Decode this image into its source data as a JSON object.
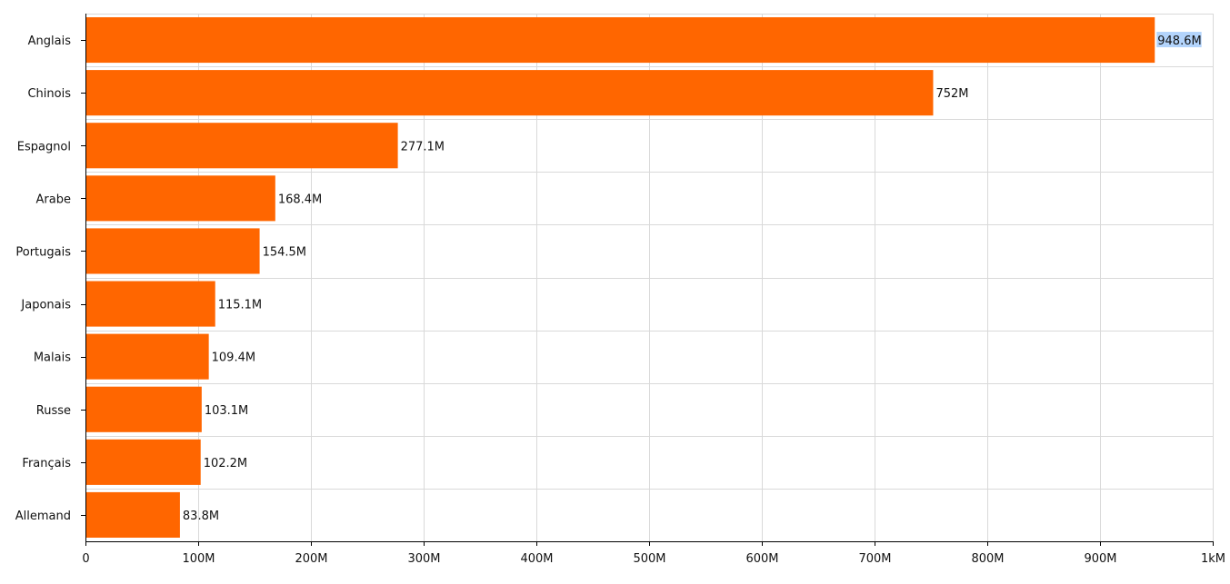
{
  "chart_data": {
    "type": "bar",
    "orientation": "horizontal",
    "categories": [
      "Anglais",
      "Chinois",
      "Espagnol",
      "Arabe",
      "Portugais",
      "Japonais",
      "Malais",
      "Russe",
      "Français",
      "Allemand"
    ],
    "values": [
      948.6,
      752,
      277.1,
      168.4,
      154.5,
      115.1,
      109.4,
      103.1,
      102.2,
      83.8
    ],
    "value_labels": [
      "948.6M",
      "752M",
      "277.1M",
      "168.4M",
      "154.5M",
      "115.1M",
      "109.4M",
      "103.1M",
      "102.2M",
      "83.8M"
    ],
    "highlighted_label_index": 0,
    "xlim": [
      0,
      1000
    ],
    "x_ticks": [
      0,
      100,
      200,
      300,
      400,
      500,
      600,
      700,
      800,
      900,
      1000
    ],
    "x_tick_labels": [
      "0",
      "100M",
      "200M",
      "300M",
      "400M",
      "500M",
      "600M",
      "700M",
      "800M",
      "900M",
      "1kM"
    ],
    "title": "",
    "xlabel": "",
    "ylabel": "",
    "grid": true,
    "legend": false,
    "colors": {
      "bar": "#ff6600",
      "grid": "#d9d9d9",
      "axis": "#000000",
      "highlight": "#b3d4fc"
    }
  }
}
